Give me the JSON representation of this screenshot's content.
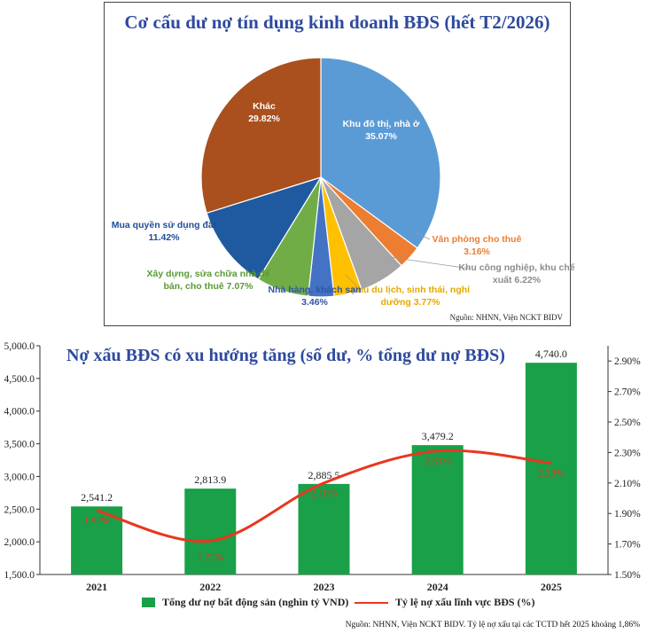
{
  "pie": {
    "title": "Cơ cấu dư nợ tín dụng kinh doanh BĐS (hết T2/2026)",
    "source": "Nguồn: NHNN, Viện NCKT BIDV"
  },
  "bar": {
    "title": "Nợ xấu BĐS có xu hướng tăng (số dư, % tổng dư nợ BĐS)",
    "source": "Nguồn: NHNN, Viện NCKT BIDV. Tỷ lệ nợ xấu tại các TCTD hết 2025 khoảng 1,86%",
    "legend": {
      "bar_label": "Tổng dư nợ bất động sản (nghìn tỷ VND)",
      "line_label": "Tỷ lệ nợ xấu lĩnh vực BĐS (%)"
    }
  },
  "chart_data": [
    {
      "type": "pie",
      "title": "Cơ cấu dư nợ tín dụng kinh doanh BĐS (hết T2/2026)",
      "slices": [
        {
          "label": "Khu đô thị, nhà ở",
          "value": 35.07,
          "display": "35.07%",
          "color": "#5B9BD5"
        },
        {
          "label": "Văn phòng cho thuê",
          "value": 3.16,
          "display": "3.16%",
          "color": "#ED7D31"
        },
        {
          "label": "Khu công nghiệp, khu chế xuất",
          "value": 6.22,
          "display": "6.22%",
          "color": "#A5A5A5"
        },
        {
          "label": "Khu du lịch, sinh thái, nghỉ dưỡng",
          "value": 3.77,
          "display": "3.77%",
          "color": "#FFC000"
        },
        {
          "label": "Nhà hàng, khách sạn",
          "value": 3.46,
          "display": "3.46%",
          "color": "#4472C4"
        },
        {
          "label": "Xây dựng, sửa chữa nhà để bán, cho thuê",
          "value": 7.07,
          "display": "7.07%",
          "color": "#70AD47"
        },
        {
          "label": "Mua quyền sử dụng đất",
          "value": 11.42,
          "display": "11.42%",
          "color": "#1F5AA0"
        },
        {
          "label": "Khác",
          "value": 29.82,
          "display": "29.82%",
          "color": "#A9501E"
        }
      ]
    },
    {
      "type": "bar",
      "title": "Nợ xấu BĐS có xu hướng tăng (số dư, % tổng dư nợ BĐS)",
      "categories": [
        "2021",
        "2022",
        "2023",
        "2024",
        "2025"
      ],
      "series": [
        {
          "name": "Tổng dư nợ bất động sản (nghìn tỷ VND)",
          "type": "bar",
          "axis": "left",
          "values": [
            2541.2,
            2813.9,
            2885.5,
            3479.2,
            4740.0
          ],
          "labels": [
            "2,541.2",
            "2,813.9",
            "2,885.5",
            "3,479.2",
            "4,740.0"
          ],
          "color": "#19A049"
        },
        {
          "name": "Tỷ lệ nợ xấu lĩnh vực BĐS (%)",
          "type": "line",
          "axis": "right",
          "values": [
            1.92,
            1.72,
            2.1,
            2.31,
            2.23
          ],
          "labels": [
            "1.92%",
            "1.72%",
            "2.10%",
            "2.31%",
            "2.23%"
          ],
          "color": "#E8371F"
        }
      ],
      "ylim_left": [
        1500,
        5000
      ],
      "yticks_left": [
        "1,500.0",
        "2,000.0",
        "2,500.0",
        "3,000.0",
        "3,500.0",
        "4,000.0",
        "4,500.0",
        "5,000.0"
      ],
      "ylim_right": [
        1.5,
        3.0
      ],
      "yticks_right": [
        "1.50%",
        "1.70%",
        "1.90%",
        "2.10%",
        "2.30%",
        "2.50%",
        "2.70%",
        "2.90%"
      ],
      "legend": "bottom"
    }
  ]
}
